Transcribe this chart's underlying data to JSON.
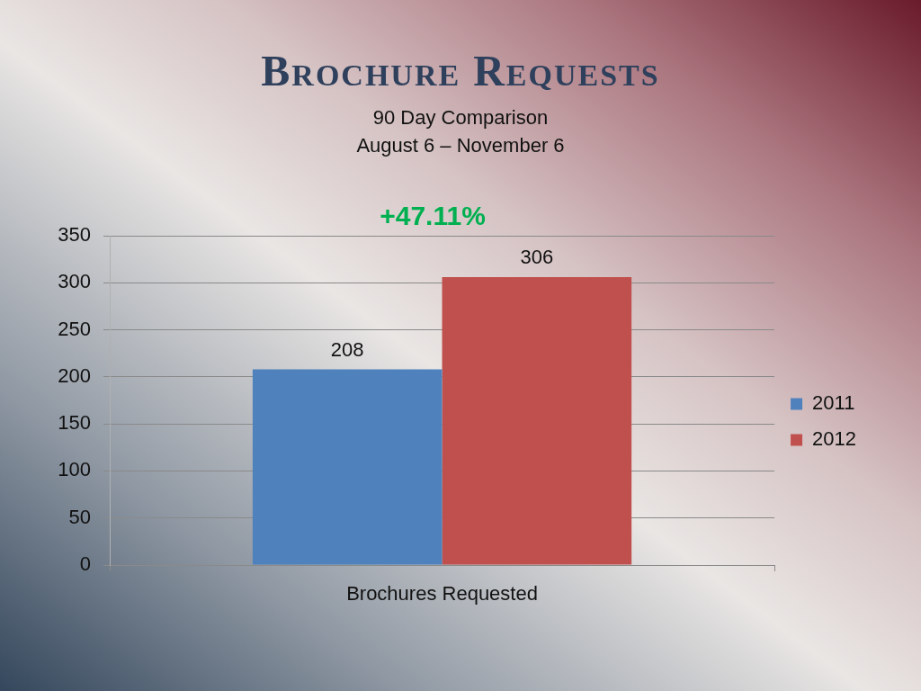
{
  "chart_data": {
    "type": "bar",
    "title": "Brochure Requests",
    "subtitle": "90 Day Comparison\nAugust 6 – November 6",
    "annotations": [
      "+47.11%"
    ],
    "categories": [
      "Brochures Requested"
    ],
    "series": [
      {
        "name": "2011",
        "color": "#4f81bd",
        "values": [
          208
        ]
      },
      {
        "name": "2012",
        "color": "#c0504d",
        "values": [
          306
        ]
      }
    ],
    "ylim": [
      0,
      350
    ],
    "yticks": [
      0,
      50,
      100,
      150,
      200,
      250,
      300,
      350
    ],
    "grid": "y",
    "legend": "right",
    "data_labels": true
  }
}
